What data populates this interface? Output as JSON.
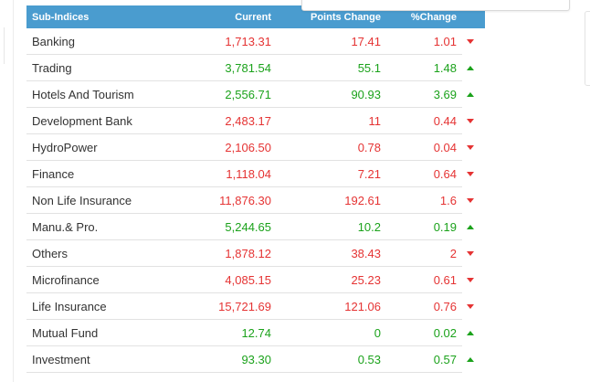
{
  "table": {
    "headers": {
      "name": "Sub-Indices",
      "current": "Current",
      "points_change": "Points Change",
      "pct_change": "%Change"
    },
    "rows": [
      {
        "name": "Banking",
        "current": "1,713.31",
        "points": "17.41",
        "pct": "1.01",
        "direction": "down"
      },
      {
        "name": "Trading",
        "current": "3,781.54",
        "points": "55.1",
        "pct": "1.48",
        "direction": "up"
      },
      {
        "name": "Hotels And Tourism",
        "current": "2,556.71",
        "points": "90.93",
        "pct": "3.69",
        "direction": "up"
      },
      {
        "name": "Development Bank",
        "current": "2,483.17",
        "points": "11",
        "pct": "0.44",
        "direction": "down"
      },
      {
        "name": "HydroPower",
        "current": "2,106.50",
        "points": "0.78",
        "pct": "0.04",
        "direction": "down"
      },
      {
        "name": "Finance",
        "current": "1,118.04",
        "points": "7.21",
        "pct": "0.64",
        "direction": "down"
      },
      {
        "name": "Non Life Insurance",
        "current": "11,876.30",
        "points": "192.61",
        "pct": "1.6",
        "direction": "down"
      },
      {
        "name": "Manu.& Pro.",
        "current": "5,244.65",
        "points": "10.2",
        "pct": "0.19",
        "direction": "up"
      },
      {
        "name": "Others",
        "current": "1,878.12",
        "points": "38.43",
        "pct": "2",
        "direction": "down"
      },
      {
        "name": "Microfinance",
        "current": "4,085.15",
        "points": "25.23",
        "pct": "0.61",
        "direction": "down"
      },
      {
        "name": "Life Insurance",
        "current": "15,721.69",
        "points": "121.06",
        "pct": "0.76",
        "direction": "down"
      },
      {
        "name": "Mutual Fund",
        "current": "12.74",
        "points": "0",
        "pct": "0.02",
        "direction": "up"
      },
      {
        "name": "Investment",
        "current": "93.30",
        "points": "0.53",
        "pct": "0.57",
        "direction": "up"
      }
    ]
  },
  "colors": {
    "header_bg": "#4a9ccf",
    "up": "#1ba21b",
    "down": "#e53333"
  }
}
